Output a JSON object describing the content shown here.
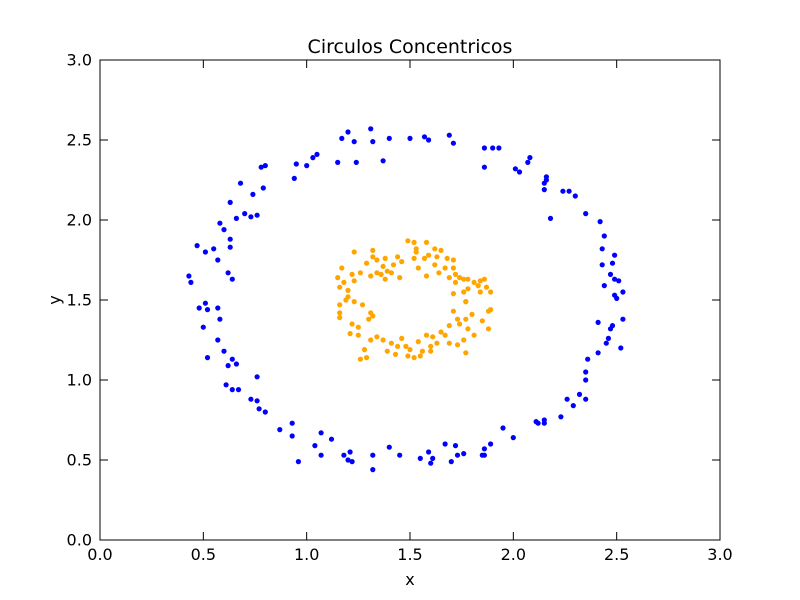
{
  "chart_data": {
    "type": "scatter",
    "title": "Circulos Concentricos",
    "xlabel": "x",
    "ylabel": "y",
    "xlim": [
      0.0,
      3.0
    ],
    "ylim": [
      0.0,
      3.0
    ],
    "x_ticks": [
      "0.0",
      "0.5",
      "1.0",
      "1.5",
      "2.0",
      "2.5",
      "3.0"
    ],
    "y_ticks": [
      "0.0",
      "0.5",
      "1.0",
      "1.5",
      "2.0",
      "2.5",
      "3.0"
    ],
    "grid": false,
    "series": [
      {
        "color": "#0000ff",
        "points": [
          [
            1.31,
            2.57
          ],
          [
            1.2,
            2.55
          ],
          [
            1.17,
            2.51
          ],
          [
            1.23,
            2.49
          ],
          [
            1.4,
            2.51
          ],
          [
            1.5,
            2.51
          ],
          [
            1.57,
            2.52
          ],
          [
            1.59,
            2.5
          ],
          [
            1.69,
            2.53
          ],
          [
            1.71,
            2.48
          ],
          [
            1.86,
            2.45
          ],
          [
            1.9,
            2.45
          ],
          [
            1.93,
            2.45
          ],
          [
            2.08,
            2.39
          ],
          [
            2.07,
            2.36
          ],
          [
            1.86,
            2.33
          ],
          [
            2.01,
            2.32
          ],
          [
            2.03,
            2.3
          ],
          [
            1.32,
            2.49
          ],
          [
            1.37,
            2.37
          ],
          [
            1.24,
            2.36
          ],
          [
            1.15,
            2.36
          ],
          [
            1.05,
            2.41
          ],
          [
            1.03,
            2.39
          ],
          [
            1.0,
            2.34
          ],
          [
            0.95,
            2.35
          ],
          [
            0.94,
            2.26
          ],
          [
            0.8,
            2.34
          ],
          [
            0.78,
            2.33
          ],
          [
            0.79,
            2.2
          ],
          [
            0.74,
            2.16
          ],
          [
            0.68,
            2.23
          ],
          [
            0.7,
            2.04
          ],
          [
            0.73,
            2.02
          ],
          [
            0.76,
            2.03
          ],
          [
            0.66,
            2.01
          ],
          [
            0.63,
            2.11
          ],
          [
            0.58,
            1.98
          ],
          [
            0.6,
            1.94
          ],
          [
            0.55,
            1.82
          ],
          [
            0.57,
            1.75
          ],
          [
            0.51,
            1.8
          ],
          [
            0.47,
            1.84
          ],
          [
            0.63,
            1.88
          ],
          [
            0.63,
            1.83
          ],
          [
            0.62,
            1.67
          ],
          [
            0.64,
            1.63
          ],
          [
            0.43,
            1.65
          ],
          [
            0.44,
            1.61
          ],
          [
            0.48,
            1.45
          ],
          [
            0.51,
            1.48
          ],
          [
            0.52,
            1.44
          ],
          [
            0.57,
            1.45
          ],
          [
            0.58,
            1.38
          ],
          [
            0.5,
            1.33
          ],
          [
            0.57,
            1.25
          ],
          [
            0.6,
            1.18
          ],
          [
            0.52,
            1.14
          ],
          [
            0.62,
            1.09
          ],
          [
            0.64,
            1.13
          ],
          [
            0.66,
            1.1
          ],
          [
            0.76,
            1.02
          ],
          [
            0.61,
            0.97
          ],
          [
            0.64,
            0.94
          ],
          [
            0.67,
            0.94
          ],
          [
            0.73,
            0.88
          ],
          [
            0.76,
            0.87
          ],
          [
            0.77,
            0.82
          ],
          [
            0.8,
            0.8
          ],
          [
            0.87,
            0.69
          ],
          [
            0.93,
            0.73
          ],
          [
            0.93,
            0.65
          ],
          [
            1.04,
            0.59
          ],
          [
            1.07,
            0.67
          ],
          [
            1.12,
            0.63
          ],
          [
            0.96,
            0.49
          ],
          [
            1.07,
            0.53
          ],
          [
            1.18,
            0.53
          ],
          [
            1.2,
            0.5
          ],
          [
            1.22,
            0.49
          ],
          [
            1.21,
            0.55
          ],
          [
            1.32,
            0.44
          ],
          [
            1.32,
            0.53
          ],
          [
            1.4,
            0.58
          ],
          [
            1.45,
            0.53
          ],
          [
            1.55,
            0.51
          ],
          [
            1.59,
            0.55
          ],
          [
            1.61,
            0.51
          ],
          [
            1.6,
            0.48
          ],
          [
            1.67,
            0.6
          ],
          [
            1.72,
            0.59
          ],
          [
            1.73,
            0.53
          ],
          [
            1.76,
            0.54
          ],
          [
            1.7,
            0.49
          ],
          [
            1.86,
            0.57
          ],
          [
            1.85,
            0.53
          ],
          [
            1.86,
            0.53
          ],
          [
            1.89,
            0.6
          ],
          [
            1.95,
            0.7
          ],
          [
            2.0,
            0.64
          ],
          [
            2.11,
            0.74
          ],
          [
            2.12,
            0.73
          ],
          [
            2.15,
            0.73
          ],
          [
            2.15,
            0.75
          ],
          [
            2.23,
            0.77
          ],
          [
            2.26,
            0.88
          ],
          [
            2.29,
            0.84
          ],
          [
            2.32,
            0.91
          ],
          [
            2.35,
            0.88
          ],
          [
            2.35,
            1.0
          ],
          [
            2.35,
            1.05
          ],
          [
            2.36,
            1.13
          ],
          [
            2.41,
            1.17
          ],
          [
            2.45,
            1.23
          ],
          [
            2.46,
            1.26
          ],
          [
            2.41,
            1.36
          ],
          [
            2.47,
            1.32
          ],
          [
            2.48,
            1.34
          ],
          [
            2.52,
            1.2
          ],
          [
            2.53,
            1.38
          ],
          [
            2.5,
            1.51
          ],
          [
            2.49,
            1.53
          ],
          [
            2.53,
            1.55
          ],
          [
            2.51,
            1.62
          ],
          [
            2.49,
            1.63
          ],
          [
            2.44,
            1.59
          ],
          [
            2.47,
            1.66
          ],
          [
            2.48,
            1.73
          ],
          [
            2.43,
            1.72
          ],
          [
            2.49,
            1.78
          ],
          [
            2.44,
            1.9
          ],
          [
            2.43,
            1.82
          ],
          [
            2.42,
            1.99
          ],
          [
            2.35,
            2.04
          ],
          [
            2.3,
            2.15
          ],
          [
            2.27,
            2.18
          ],
          [
            2.24,
            2.18
          ],
          [
            2.18,
            2.01
          ],
          [
            2.15,
            2.19
          ],
          [
            2.15,
            2.23
          ],
          [
            2.16,
            2.25
          ],
          [
            2.16,
            2.27
          ]
        ]
      },
      {
        "color": "#ffa500",
        "points": [
          [
            1.23,
            1.8
          ],
          [
            1.32,
            1.81
          ],
          [
            1.32,
            1.77
          ],
          [
            1.29,
            1.73
          ],
          [
            1.34,
            1.75
          ],
          [
            1.38,
            1.76
          ],
          [
            1.37,
            1.71
          ],
          [
            1.39,
            1.68
          ],
          [
            1.42,
            1.72
          ],
          [
            1.44,
            1.77
          ],
          [
            1.46,
            1.74
          ],
          [
            1.49,
            1.87
          ],
          [
            1.52,
            1.86
          ],
          [
            1.53,
            1.82
          ],
          [
            1.53,
            1.8
          ],
          [
            1.58,
            1.86
          ],
          [
            1.62,
            1.82
          ],
          [
            1.65,
            1.81
          ],
          [
            1.63,
            1.77
          ],
          [
            1.59,
            1.78
          ],
          [
            1.57,
            1.76
          ],
          [
            1.62,
            1.72
          ],
          [
            1.67,
            1.7
          ],
          [
            1.68,
            1.76
          ],
          [
            1.71,
            1.75
          ],
          [
            1.71,
            1.7
          ],
          [
            1.72,
            1.66
          ],
          [
            1.74,
            1.64
          ],
          [
            1.76,
            1.63
          ],
          [
            1.78,
            1.63
          ],
          [
            1.81,
            1.61
          ],
          [
            1.83,
            1.59
          ],
          [
            1.84,
            1.62
          ],
          [
            1.86,
            1.63
          ],
          [
            1.78,
            1.57
          ],
          [
            1.76,
            1.55
          ],
          [
            1.84,
            1.55
          ],
          [
            1.87,
            1.58
          ],
          [
            1.89,
            1.55
          ],
          [
            1.88,
            1.43
          ],
          [
            1.89,
            1.44
          ],
          [
            1.85,
            1.37
          ],
          [
            1.88,
            1.32
          ],
          [
            1.77,
            1.49
          ],
          [
            1.8,
            1.41
          ],
          [
            1.77,
            1.38
          ],
          [
            1.74,
            1.35
          ],
          [
            1.78,
            1.32
          ],
          [
            1.81,
            1.28
          ],
          [
            1.76,
            1.25
          ],
          [
            1.73,
            1.22
          ],
          [
            1.77,
            1.17
          ],
          [
            1.69,
            1.23
          ],
          [
            1.67,
            1.28
          ],
          [
            1.61,
            1.27
          ],
          [
            1.58,
            1.28
          ],
          [
            1.6,
            1.21
          ],
          [
            1.6,
            1.18
          ],
          [
            1.56,
            1.18
          ],
          [
            1.55,
            1.15
          ],
          [
            1.52,
            1.14
          ],
          [
            1.49,
            1.15
          ],
          [
            1.48,
            1.21
          ],
          [
            1.46,
            1.26
          ],
          [
            1.41,
            1.23
          ],
          [
            1.43,
            1.16
          ],
          [
            1.39,
            1.18
          ],
          [
            1.37,
            1.25
          ],
          [
            1.34,
            1.27
          ],
          [
            1.31,
            1.25
          ],
          [
            1.29,
            1.14
          ],
          [
            1.26,
            1.13
          ],
          [
            1.28,
            1.19
          ],
          [
            1.25,
            1.28
          ],
          [
            1.21,
            1.29
          ],
          [
            1.25,
            1.33
          ],
          [
            1.22,
            1.35
          ],
          [
            1.3,
            1.38
          ],
          [
            1.32,
            1.4
          ],
          [
            1.31,
            1.42
          ],
          [
            1.27,
            1.47
          ],
          [
            1.23,
            1.49
          ],
          [
            1.19,
            1.5
          ],
          [
            1.16,
            1.47
          ],
          [
            1.16,
            1.42
          ],
          [
            1.16,
            1.39
          ],
          [
            1.2,
            1.52
          ],
          [
            1.2,
            1.56
          ],
          [
            1.16,
            1.58
          ],
          [
            1.15,
            1.64
          ],
          [
            1.18,
            1.61
          ],
          [
            1.17,
            1.7
          ],
          [
            1.22,
            1.66
          ],
          [
            1.23,
            1.62
          ],
          [
            1.26,
            1.67
          ],
          [
            1.31,
            1.65
          ],
          [
            1.34,
            1.67
          ],
          [
            1.36,
            1.66
          ],
          [
            1.38,
            1.63
          ],
          [
            1.41,
            1.67
          ],
          [
            1.45,
            1.64
          ],
          [
            1.52,
            1.76
          ],
          [
            1.54,
            1.7
          ],
          [
            1.58,
            1.65
          ],
          [
            1.64,
            1.67
          ],
          [
            1.69,
            1.64
          ],
          [
            1.72,
            1.61
          ],
          [
            1.77,
            1.49
          ],
          [
            1.71,
            1.54
          ],
          [
            1.71,
            1.43
          ],
          [
            1.73,
            1.38
          ],
          [
            1.69,
            1.34
          ],
          [
            1.65,
            1.3
          ],
          [
            1.63,
            1.23
          ],
          [
            1.54,
            1.24
          ],
          [
            1.5,
            1.19
          ],
          [
            1.44,
            1.21
          ]
        ]
      }
    ]
  }
}
